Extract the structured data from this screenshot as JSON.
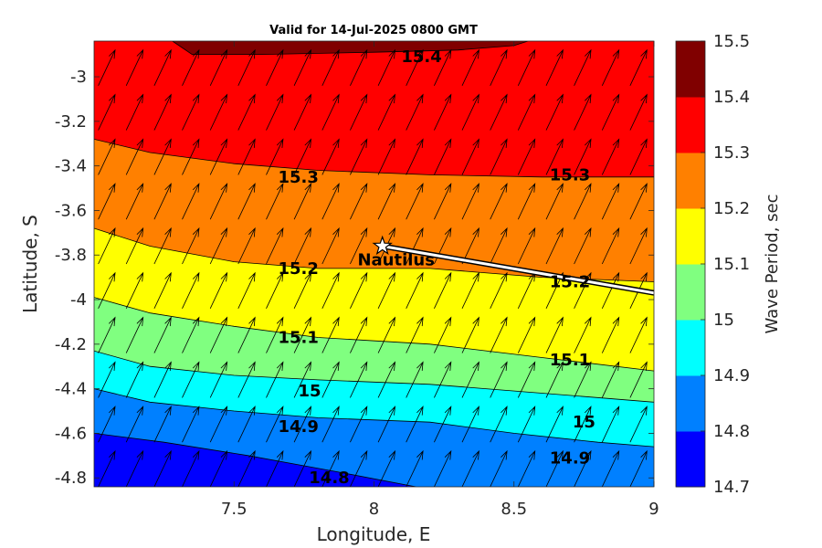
{
  "title": "Valid for 14-Jul-2025 0800 GMT",
  "chart_data": {
    "type": "heatmap",
    "subtype": "filled-contour-with-wave-direction-arrows",
    "title": "Valid for 14-Jul-2025 0800 GMT",
    "xlabel": "Longitude, E",
    "ylabel": "Latitude, S",
    "colorbar_label": "Wave Period, sec",
    "xlim": [
      7.0,
      9.0
    ],
    "ylim": [
      -4.84,
      -2.84
    ],
    "xticks": [
      7.5,
      8,
      8.5,
      9
    ],
    "xtick_labels": [
      "7.5",
      "8",
      "8.5",
      "9"
    ],
    "yticks": [
      -3,
      -3.2,
      -3.4,
      -3.6,
      -3.8,
      -4,
      -4.2,
      -4.4,
      -4.6,
      -4.8
    ],
    "ytick_labels": [
      "-3",
      "-3.2",
      "-3.4",
      "-3.6",
      "-3.8",
      "-4",
      "-4.2",
      "-4.4",
      "-4.6",
      "-4.8"
    ],
    "colorbar": {
      "levels": [
        14.7,
        14.8,
        14.9,
        15,
        15.1,
        15.2,
        15.3,
        15.4,
        15.5
      ],
      "labels": [
        "14.7",
        "14.8",
        "14.9",
        "15",
        "15.1",
        "15.2",
        "15.3",
        "15.4",
        "15.5"
      ],
      "colors": [
        "#0000ff",
        "#0080ff",
        "#00ffff",
        "#80ff80",
        "#ffff00",
        "#ff8000",
        "#ff0000",
        "#800000"
      ]
    },
    "contours": [
      {
        "level": 14.8,
        "points": [
          [
            7.0,
            -4.6
          ],
          [
            7.25,
            -4.64
          ],
          [
            7.55,
            -4.7
          ],
          [
            7.9,
            -4.78
          ],
          [
            8.15,
            -4.84
          ]
        ]
      },
      {
        "level": 14.9,
        "points": [
          [
            7.0,
            -4.4
          ],
          [
            7.2,
            -4.46
          ],
          [
            7.5,
            -4.5
          ],
          [
            7.8,
            -4.53
          ],
          [
            8.2,
            -4.55
          ],
          [
            8.5,
            -4.6
          ],
          [
            8.8,
            -4.64
          ],
          [
            9.0,
            -4.66
          ]
        ]
      },
      {
        "level": 15,
        "points": [
          [
            7.0,
            -4.23
          ],
          [
            7.2,
            -4.3
          ],
          [
            7.5,
            -4.34
          ],
          [
            7.8,
            -4.36
          ],
          [
            8.2,
            -4.38
          ],
          [
            8.6,
            -4.42
          ],
          [
            9.0,
            -4.46
          ]
        ]
      },
      {
        "level": 15.1,
        "points": [
          [
            7.0,
            -3.99
          ],
          [
            7.2,
            -4.06
          ],
          [
            7.5,
            -4.12
          ],
          [
            7.8,
            -4.17
          ],
          [
            8.2,
            -4.2
          ],
          [
            8.6,
            -4.26
          ],
          [
            9.0,
            -4.32
          ]
        ]
      },
      {
        "level": 15.2,
        "points": [
          [
            7.0,
            -3.68
          ],
          [
            7.2,
            -3.76
          ],
          [
            7.5,
            -3.83
          ],
          [
            7.8,
            -3.86
          ],
          [
            8.2,
            -3.86
          ],
          [
            8.6,
            -3.9
          ],
          [
            9.0,
            -3.92
          ]
        ]
      },
      {
        "level": 15.3,
        "points": [
          [
            7.0,
            -3.28
          ],
          [
            7.2,
            -3.34
          ],
          [
            7.5,
            -3.39
          ],
          [
            7.8,
            -3.42
          ],
          [
            8.2,
            -3.44
          ],
          [
            8.6,
            -3.45
          ],
          [
            9.0,
            -3.45
          ]
        ]
      },
      {
        "level": 15.4,
        "points": [
          [
            7.28,
            -2.84
          ],
          [
            7.35,
            -2.9
          ],
          [
            7.6,
            -2.9
          ],
          [
            8.0,
            -2.89
          ],
          [
            8.3,
            -2.88
          ],
          [
            8.5,
            -2.86
          ],
          [
            8.55,
            -2.84
          ]
        ]
      }
    ],
    "contour_labels": [
      {
        "text": "15.4",
        "x": 8.17,
        "y": -2.91
      },
      {
        "text": "15.3",
        "x": 7.73,
        "y": -3.45
      },
      {
        "text": "15.3",
        "x": 8.7,
        "y": -3.44
      },
      {
        "text": "15.2",
        "x": 7.73,
        "y": -3.86
      },
      {
        "text": "15.2",
        "x": 8.7,
        "y": -3.92
      },
      {
        "text": "15.1",
        "x": 7.73,
        "y": -4.17
      },
      {
        "text": "15.1",
        "x": 8.7,
        "y": -4.27
      },
      {
        "text": "15",
        "x": 7.77,
        "y": -4.41
      },
      {
        "text": "14.9",
        "x": 7.73,
        "y": -4.57
      },
      {
        "text": "15",
        "x": 8.75,
        "y": -4.55
      },
      {
        "text": "14.9",
        "x": 8.7,
        "y": -4.71
      },
      {
        "text": "14.8",
        "x": 7.84,
        "y": -4.8
      }
    ],
    "wave_direction": {
      "dx": 0.06,
      "dy": 0.16,
      "grid_dx": 0.1,
      "grid_dy": 0.2
    },
    "ship": {
      "name": "Nautilus",
      "x": 8.03,
      "y": -3.76,
      "track_end": [
        9.0,
        -3.97
      ]
    }
  }
}
